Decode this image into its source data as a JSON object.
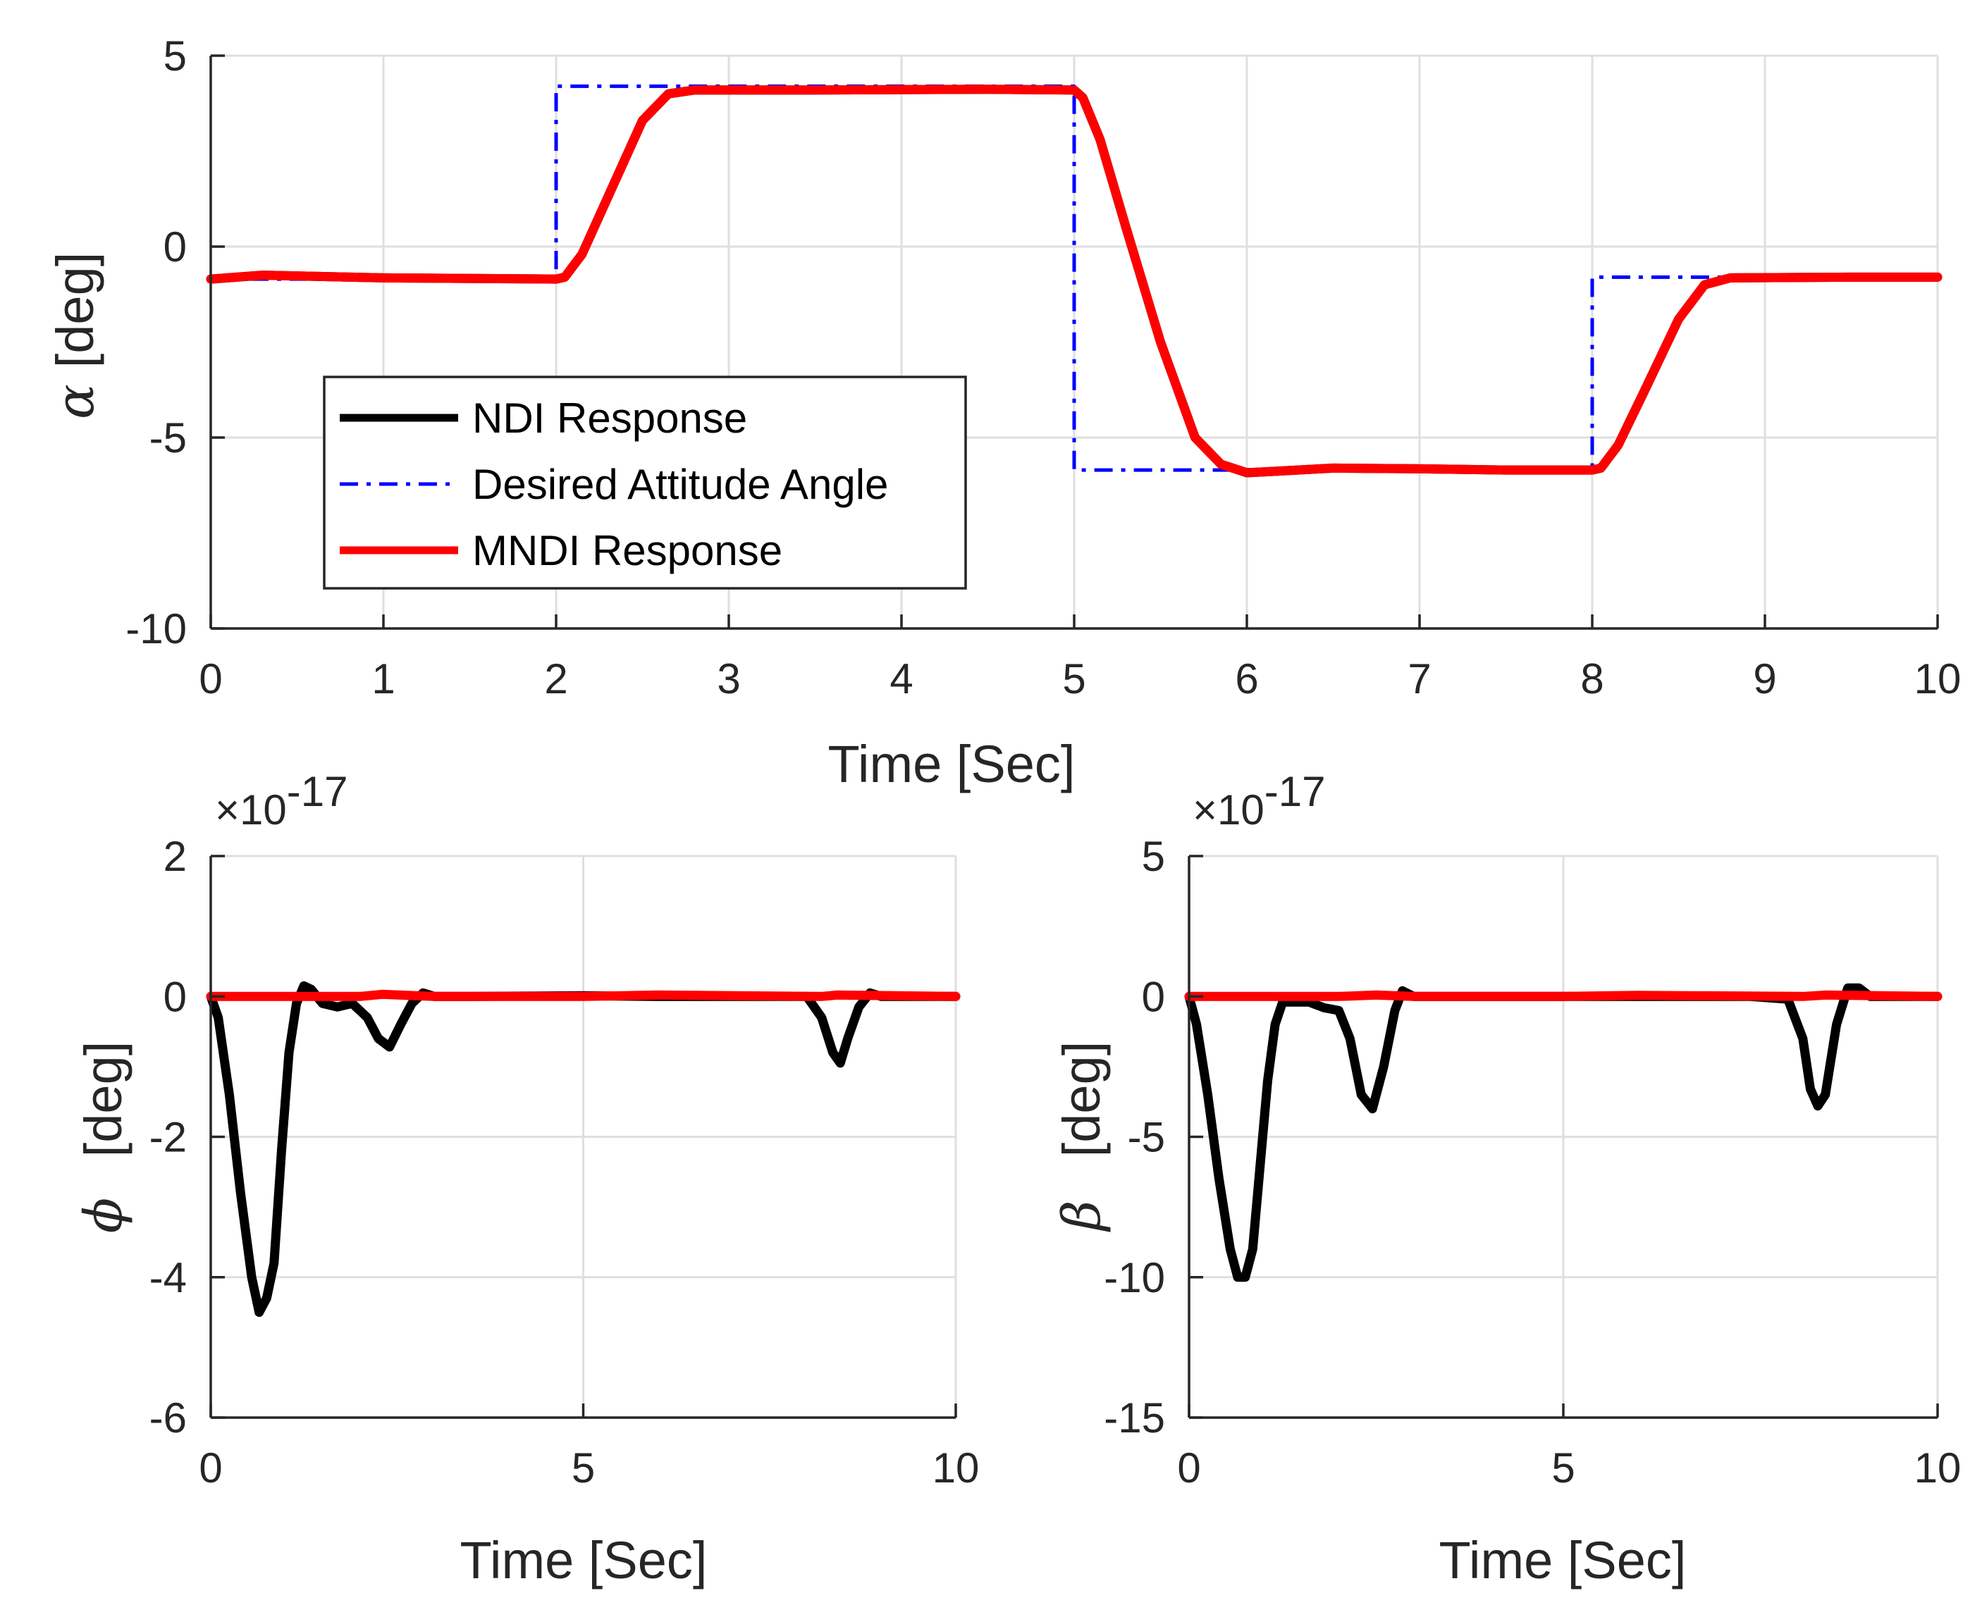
{
  "colors": {
    "ndi": "#000000",
    "desired": "#0000ff",
    "mndi": "#ff0000",
    "grid": "#dfdfdf",
    "axis": "#262626"
  },
  "chart_data": [
    {
      "id": "alpha",
      "type": "line",
      "ylabel_symbol": "α",
      "ylabel_unit": "[deg]",
      "xlabel": "Time  [Sec]",
      "xlim": [
        0,
        10
      ],
      "ylim": [
        -10,
        5
      ],
      "xticks": [
        0,
        1,
        2,
        3,
        4,
        5,
        6,
        7,
        8,
        9,
        10
      ],
      "yticks": [
        -10,
        -5,
        0,
        5
      ],
      "grid": true,
      "legend_position": "bottom-left",
      "exponent": "",
      "legend": [
        "NDI Response",
        "Desired Attitude Angle",
        "MNDI Response"
      ],
      "series": [
        {
          "name": "NDI Response",
          "style": "solid",
          "color": "#000000",
          "x": [
            0,
            0.3,
            1,
            2,
            2.05,
            2.15,
            2.3,
            2.5,
            2.65,
            2.8,
            3.5,
            4.5,
            5.0,
            5.05,
            5.15,
            5.3,
            5.5,
            5.7,
            5.85,
            6.0,
            6.1,
            6.5,
            7,
            7.5,
            8.0,
            8.05,
            8.15,
            8.3,
            8.5,
            8.65,
            8.8,
            9.5,
            10
          ],
          "y": [
            -0.85,
            -0.75,
            -0.82,
            -0.85,
            -0.8,
            -0.2,
            1.3,
            3.3,
            4.0,
            4.1,
            4.1,
            4.12,
            4.1,
            3.9,
            2.8,
            0.5,
            -2.5,
            -5.0,
            -5.7,
            -5.92,
            -5.9,
            -5.8,
            -5.82,
            -5.85,
            -5.85,
            -5.8,
            -5.2,
            -3.8,
            -1.9,
            -1.0,
            -0.82,
            -0.8,
            -0.8
          ]
        },
        {
          "name": "Desired Attitude Angle",
          "style": "dashdot",
          "color": "#0000ff",
          "x": [
            0,
            2,
            2,
            5,
            5,
            8,
            8,
            10
          ],
          "y": [
            -0.85,
            -0.85,
            4.2,
            4.2,
            -5.85,
            -5.85,
            -0.8,
            -0.8
          ]
        },
        {
          "name": "MNDI Response",
          "style": "solid",
          "color": "#ff0000",
          "x": [
            0,
            0.3,
            1,
            2,
            2.05,
            2.15,
            2.3,
            2.5,
            2.65,
            2.8,
            3.5,
            4.5,
            5.0,
            5.05,
            5.15,
            5.3,
            5.5,
            5.7,
            5.85,
            6.0,
            6.1,
            6.5,
            7,
            7.5,
            8.0,
            8.05,
            8.15,
            8.3,
            8.5,
            8.65,
            8.8,
            9.5,
            10
          ],
          "y": [
            -0.85,
            -0.75,
            -0.82,
            -0.85,
            -0.8,
            -0.2,
            1.3,
            3.3,
            4.0,
            4.1,
            4.1,
            4.12,
            4.1,
            3.9,
            2.8,
            0.5,
            -2.5,
            -5.0,
            -5.7,
            -5.92,
            -5.9,
            -5.8,
            -5.82,
            -5.85,
            -5.85,
            -5.8,
            -5.2,
            -3.8,
            -1.9,
            -1.0,
            -0.82,
            -0.8,
            -0.8
          ]
        }
      ]
    },
    {
      "id": "phi",
      "type": "line",
      "ylabel_symbol": "ϕ",
      "ylabel_unit": "[deg]",
      "xlabel": "Time  [Sec]",
      "xlim": [
        0,
        10
      ],
      "ylim": [
        -6,
        2
      ],
      "xticks": [
        0,
        5,
        10
      ],
      "yticks": [
        -6,
        -4,
        -2,
        0,
        2
      ],
      "grid": true,
      "exponent_prefix": "×10",
      "exponent_power": "-17",
      "series": [
        {
          "name": "NDI Response",
          "style": "solid",
          "color": "#000000",
          "x": [
            0,
            0.1,
            0.25,
            0.4,
            0.55,
            0.65,
            0.75,
            0.85,
            0.95,
            1.05,
            1.15,
            1.25,
            1.35,
            1.5,
            1.7,
            1.9,
            2.1,
            2.25,
            2.4,
            2.55,
            2.7,
            2.85,
            3.0,
            3.5,
            5,
            6,
            7.5,
            8.0,
            8.2,
            8.35,
            8.45,
            8.55,
            8.7,
            8.85,
            9.0,
            9.5,
            10
          ],
          "y": [
            0,
            -0.3,
            -1.4,
            -2.8,
            -4.0,
            -4.5,
            -4.3,
            -3.8,
            -2.2,
            -0.8,
            -0.1,
            0.15,
            0.1,
            -0.1,
            -0.15,
            -0.1,
            -0.3,
            -0.6,
            -0.72,
            -0.4,
            -0.1,
            0.05,
            0,
            0,
            0.01,
            0,
            0,
            0,
            -0.3,
            -0.8,
            -0.95,
            -0.6,
            -0.15,
            0.05,
            0.0,
            0.0,
            0
          ]
        },
        {
          "name": "MNDI Response",
          "style": "solid",
          "color": "#ff0000",
          "x": [
            0,
            2,
            2.3,
            3,
            5,
            6,
            8.2,
            8.4,
            10
          ],
          "y": [
            0,
            0,
            0.03,
            0,
            0,
            0.02,
            0,
            0.02,
            0
          ]
        }
      ]
    },
    {
      "id": "beta",
      "type": "line",
      "ylabel_symbol": "β",
      "ylabel_unit": "[deg]",
      "xlabel": "Time  [Sec]",
      "xlim": [
        0,
        10
      ],
      "ylim": [
        -15,
        5
      ],
      "xticks": [
        0,
        5,
        10
      ],
      "yticks": [
        -15,
        -10,
        -5,
        0,
        5
      ],
      "grid": true,
      "exponent_prefix": "×10",
      "exponent_power": "-17",
      "series": [
        {
          "name": "NDI Response",
          "style": "solid",
          "color": "#000000",
          "x": [
            0,
            0.1,
            0.25,
            0.4,
            0.55,
            0.65,
            0.75,
            0.85,
            0.95,
            1.05,
            1.15,
            1.25,
            1.4,
            1.6,
            1.8,
            2.0,
            2.15,
            2.3,
            2.45,
            2.6,
            2.75,
            2.85,
            3.0,
            3.5,
            5,
            6,
            7.5,
            8.0,
            8.2,
            8.3,
            8.4,
            8.5,
            8.65,
            8.8,
            8.95,
            9.1,
            9.5,
            10
          ],
          "y": [
            0,
            -1.0,
            -3.5,
            -6.5,
            -9.0,
            -10.0,
            -10.0,
            -9.0,
            -6.0,
            -3.0,
            -1.0,
            -0.2,
            -0.2,
            -0.2,
            -0.4,
            -0.5,
            -1.5,
            -3.5,
            -4.0,
            -2.5,
            -0.5,
            0.2,
            0,
            0,
            0,
            0,
            0,
            -0.1,
            -1.5,
            -3.3,
            -3.9,
            -3.5,
            -1.0,
            0.3,
            0.3,
            0,
            0,
            0
          ]
        },
        {
          "name": "MNDI Response",
          "style": "solid",
          "color": "#ff0000",
          "x": [
            0,
            2,
            2.5,
            3,
            5,
            6,
            8.2,
            8.5,
            10
          ],
          "y": [
            0,
            0,
            0.05,
            0,
            0,
            0.04,
            0,
            0.05,
            0
          ]
        }
      ]
    }
  ]
}
